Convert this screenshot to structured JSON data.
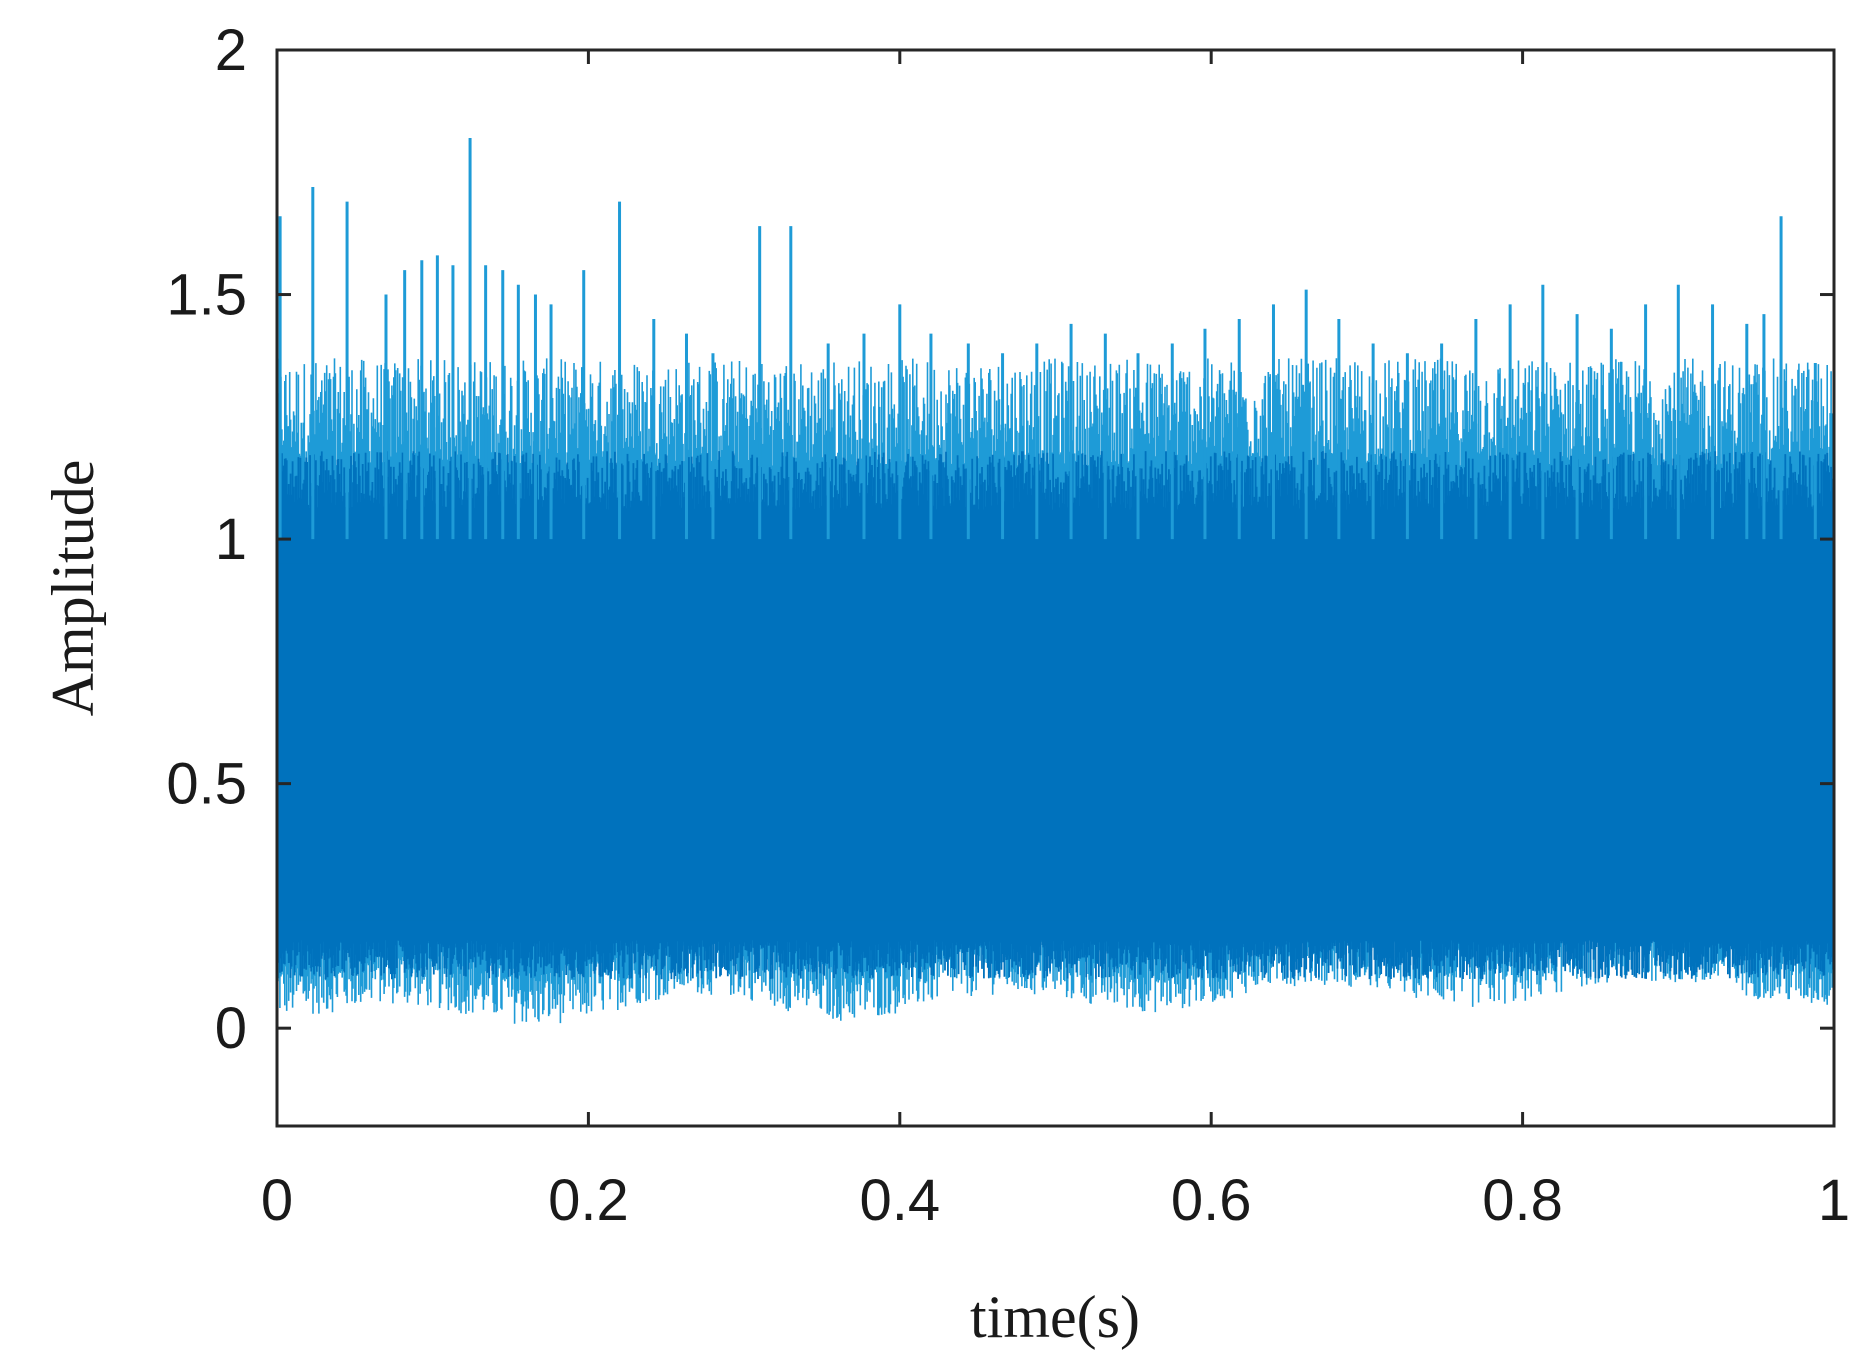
{
  "chart_data": {
    "type": "line",
    "title": "",
    "xlabel": "time(s)",
    "ylabel": "Amplitude",
    "xlim": [
      0,
      1
    ],
    "ylim": [
      -0.2,
      2
    ],
    "xticks": [
      0,
      0.2,
      0.4,
      0.6,
      0.8,
      1
    ],
    "xtick_labels": [
      "0",
      "0.2",
      "0.4",
      "0.6",
      "0.8",
      "1"
    ],
    "yticks": [
      0,
      0.5,
      1,
      1.5,
      2
    ],
    "ytick_labels": [
      "0",
      "0.5",
      "1",
      "1.5",
      "2"
    ],
    "grid": false,
    "legend": "none",
    "series_color": "#0072BD",
    "peak_color": "#1E9BD7",
    "series": [
      {
        "mean_level": 0.55,
        "dense_band": [
          0.1,
          1.1
        ],
        "sample_count": 1600,
        "upper_peaks": {
          "x": [
            0.002,
            0.023,
            0.045,
            0.07,
            0.082,
            0.093,
            0.103,
            0.113,
            0.124,
            0.134,
            0.145,
            0.155,
            0.166,
            0.176,
            0.197,
            0.22,
            0.242,
            0.263,
            0.28,
            0.31,
            0.33,
            0.354,
            0.377,
            0.4,
            0.42,
            0.444,
            0.466,
            0.488,
            0.51,
            0.532,
            0.553,
            0.575,
            0.596,
            0.618,
            0.64,
            0.661,
            0.682,
            0.704,
            0.726,
            0.748,
            0.77,
            0.792,
            0.813,
            0.835,
            0.857,
            0.879,
            0.9,
            0.922,
            0.944,
            0.955,
            0.966,
            0.988
          ],
          "y": [
            1.66,
            1.72,
            1.69,
            1.5,
            1.55,
            1.57,
            1.58,
            1.56,
            1.82,
            1.56,
            1.55,
            1.52,
            1.5,
            1.48,
            1.55,
            1.69,
            1.45,
            1.42,
            1.38,
            1.64,
            1.64,
            1.4,
            1.42,
            1.48,
            1.42,
            1.4,
            1.38,
            1.4,
            1.44,
            1.42,
            1.38,
            1.4,
            1.43,
            1.45,
            1.48,
            1.51,
            1.45,
            1.4,
            1.38,
            1.4,
            1.45,
            1.48,
            1.52,
            1.46,
            1.43,
            1.48,
            1.52,
            1.48,
            1.44,
            1.46,
            1.66,
            1.36
          ]
        },
        "lower_envelope": [
          0.02,
          0.03,
          0.05,
          0.04,
          0.02,
          0.0,
          0.02,
          0.05,
          0.07,
          0.06,
          0.03,
          0.01,
          0.03,
          0.06,
          0.07,
          0.06,
          0.04,
          0.03,
          0.05,
          0.08,
          0.09,
          0.08,
          0.06,
          0.04,
          0.05,
          0.08,
          0.1,
          0.09,
          0.07,
          0.05,
          0.04
        ]
      }
    ]
  }
}
